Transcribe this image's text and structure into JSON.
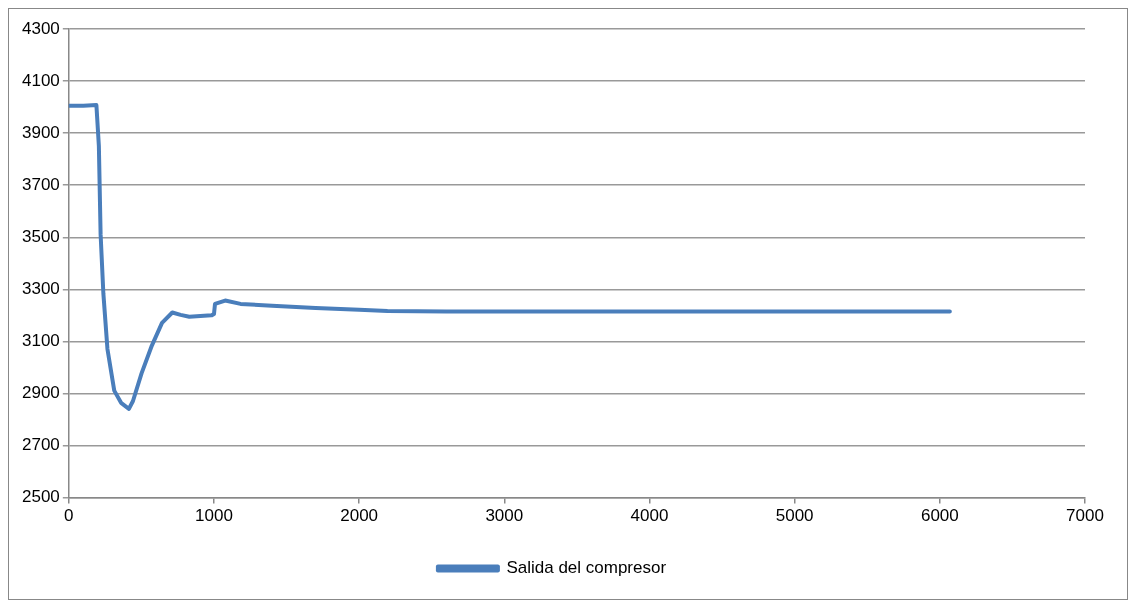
{
  "chart_data": {
    "type": "line",
    "x": [
      0,
      100,
      190,
      207,
      219,
      238,
      266,
      313,
      360,
      414,
      442,
      501,
      572,
      642,
      713,
      770,
      830,
      983,
      1000,
      1007,
      1077,
      1183,
      1400,
      1700,
      2000,
      2195,
      2600,
      3500,
      4500,
      5500,
      6069
    ],
    "series": [
      {
        "name": "Salida del compresor",
        "color": "#4a7ebb",
        "values": [
          4005,
          4005,
          4008,
          3850,
          3511,
          3284,
          3071,
          2911,
          2864,
          2841,
          2871,
          2977,
          3084,
          3171,
          3211,
          3202,
          3195,
          3200,
          3205,
          3244,
          3257,
          3244,
          3237,
          3228,
          3222,
          3217,
          3215,
          3215,
          3215,
          3215,
          3215
        ]
      }
    ],
    "xlim": [
      0,
      7000
    ],
    "xticks": [
      0,
      1000,
      2000,
      3000,
      4000,
      5000,
      6000,
      7000
    ],
    "ylim": [
      2500,
      4300
    ],
    "yticks": [
      2500,
      2700,
      2900,
      3100,
      3300,
      3500,
      3700,
      3900,
      4100,
      4300
    ],
    "grid": "y",
    "legend": "bottom",
    "marker": "none",
    "line_style": "solid"
  }
}
